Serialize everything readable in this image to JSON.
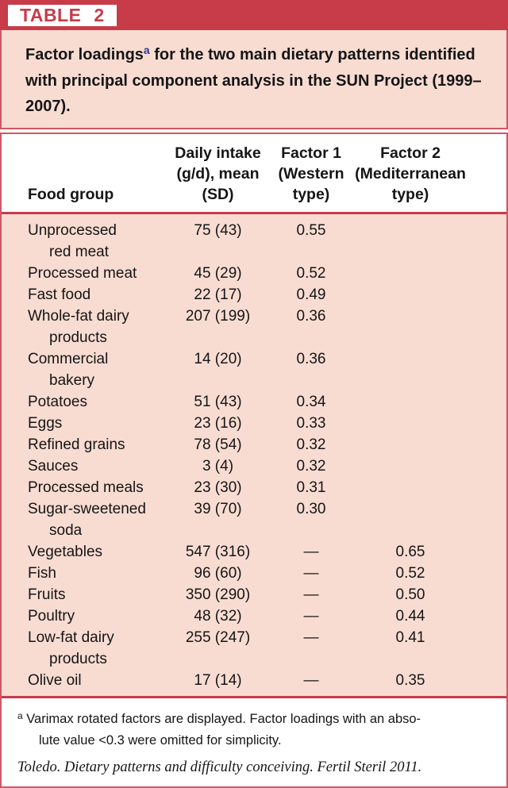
{
  "colors": {
    "accent_red": "#c83b49",
    "border_red": "#d15763",
    "panel_pink": "#f8dcd2",
    "superscript_blue": "#2b3990",
    "text": "#151515",
    "white": "#ffffff"
  },
  "badge": {
    "label": "TABLE 2"
  },
  "title": {
    "pre": "Factor loadings",
    "sup": "a",
    "post": " for the two main dietary patterns identified with principal component analysis in the SUN Project (1999–2007)."
  },
  "table": {
    "columns": [
      {
        "label": "Food group",
        "lines": [
          "Food group"
        ]
      },
      {
        "label": "Daily intake (g/d), mean (SD)",
        "lines": [
          "Daily intake",
          "(g/d), mean",
          "(SD)"
        ]
      },
      {
        "label": "Factor 1 (Western type)",
        "lines": [
          "Factor 1",
          "(Western",
          "type)"
        ]
      },
      {
        "label": "Factor 2 (Mediterranean type)",
        "lines": [
          "Factor 2",
          "(Mediterranean",
          "type)"
        ]
      }
    ],
    "rows": [
      {
        "food_lines": [
          "Unprocessed",
          "red meat"
        ],
        "intake": "75 (43)",
        "factor1": "0.55",
        "factor2": ""
      },
      {
        "food_lines": [
          "Processed meat"
        ],
        "intake": "45 (29)",
        "factor1": "0.52",
        "factor2": ""
      },
      {
        "food_lines": [
          "Fast food"
        ],
        "intake": "22 (17)",
        "factor1": "0.49",
        "factor2": ""
      },
      {
        "food_lines": [
          "Whole-fat dairy",
          "products"
        ],
        "intake": "207 (199)",
        "factor1": "0.36",
        "factor2": ""
      },
      {
        "food_lines": [
          "Commercial",
          "bakery"
        ],
        "intake": "14 (20)",
        "factor1": "0.36",
        "factor2": ""
      },
      {
        "food_lines": [
          "Potatoes"
        ],
        "intake": "51 (43)",
        "factor1": "0.34",
        "factor2": ""
      },
      {
        "food_lines": [
          "Eggs"
        ],
        "intake": "23 (16)",
        "factor1": "0.33",
        "factor2": ""
      },
      {
        "food_lines": [
          "Refined grains"
        ],
        "intake": "78 (54)",
        "factor1": "0.32",
        "factor2": ""
      },
      {
        "food_lines": [
          "Sauces"
        ],
        "intake": "3 (4)",
        "factor1": "0.32",
        "factor2": ""
      },
      {
        "food_lines": [
          "Processed meals"
        ],
        "intake": "23 (30)",
        "factor1": "0.31",
        "factor2": ""
      },
      {
        "food_lines": [
          "Sugar-sweetened",
          "soda"
        ],
        "intake": "39 (70)",
        "factor1": "0.30",
        "factor2": ""
      },
      {
        "food_lines": [
          "Vegetables"
        ],
        "intake": "547 (316)",
        "factor1": "—",
        "factor2": "0.65"
      },
      {
        "food_lines": [
          "Fish"
        ],
        "intake": "96 (60)",
        "factor1": "—",
        "factor2": "0.52"
      },
      {
        "food_lines": [
          "Fruits"
        ],
        "intake": "350 (290)",
        "factor1": "—",
        "factor2": "0.50"
      },
      {
        "food_lines": [
          "Poultry"
        ],
        "intake": "48 (32)",
        "factor1": "—",
        "factor2": "0.44"
      },
      {
        "food_lines": [
          "Low-fat dairy",
          "products"
        ],
        "intake": "255 (247)",
        "factor1": "—",
        "factor2": "0.41"
      },
      {
        "food_lines": [
          "Olive oil"
        ],
        "intake": "17 (14)",
        "factor1": "—",
        "factor2": "0.35"
      }
    ]
  },
  "footnote": {
    "sup": "a",
    "line1": "Varimax rotated factors are displayed. Factor loadings with an abso-",
    "line2": "lute value <0.3 were omitted for simplicity."
  },
  "citation": "Toledo. Dietary patterns and difficulty conceiving. Fertil Steril 2011."
}
